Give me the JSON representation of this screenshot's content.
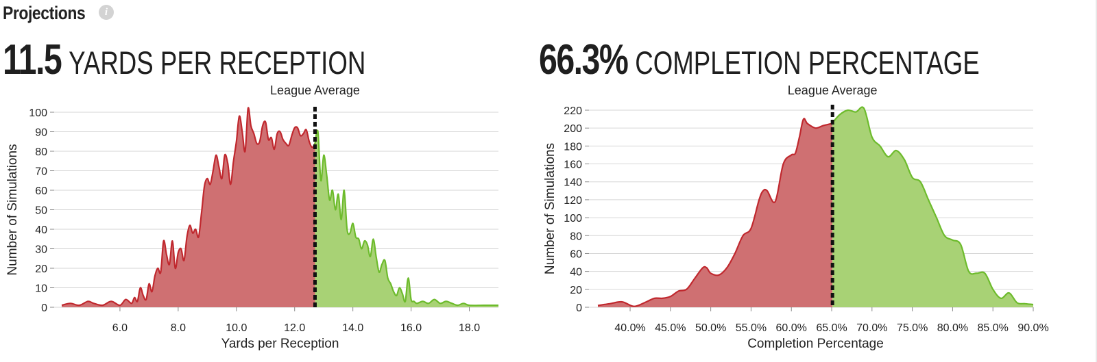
{
  "header": {
    "title": "Projections",
    "info_icon": "info-icon"
  },
  "stats": [
    {
      "value": "11.5",
      "label": "YARDS PER RECEPTION"
    },
    {
      "value": "66.3%",
      "label": "COMPLETION PERCENTAGE"
    }
  ],
  "colors": {
    "below": "#c0282e",
    "below_fill": "#cf7072",
    "above": "#6dbb2c",
    "above_fill": "#a8d275",
    "grid": "#d6d6d6",
    "marker": "#111111"
  },
  "chart_data": [
    {
      "type": "area",
      "annotation": "League Average",
      "league_average": 12.7,
      "xlabel": "Yards per Reception",
      "ylabel": "Number of Simulations",
      "xlim": [
        4.0,
        19.0
      ],
      "ylim": [
        0,
        100
      ],
      "x_ticks": [
        6.0,
        8.0,
        10.0,
        12.0,
        14.0,
        16.0,
        18.0
      ],
      "x_tick_labels": [
        "6.0",
        "8.0",
        "10.0",
        "12.0",
        "14.0",
        "16.0",
        "18.0"
      ],
      "y_ticks": [
        0,
        10,
        20,
        30,
        40,
        50,
        60,
        70,
        80,
        90,
        100
      ],
      "y_tick_labels": [
        "0",
        "10",
        "20",
        "30",
        "40",
        "50",
        "60",
        "70",
        "80",
        "90",
        "100"
      ],
      "grid": true,
      "x": [
        4.0,
        4.3,
        4.6,
        4.9,
        5.1,
        5.4,
        5.7,
        6.0,
        6.2,
        6.4,
        6.5,
        6.6,
        6.7,
        6.8,
        6.9,
        7.0,
        7.1,
        7.2,
        7.3,
        7.4,
        7.5,
        7.6,
        7.7,
        7.8,
        7.9,
        8.0,
        8.1,
        8.2,
        8.3,
        8.4,
        8.5,
        8.6,
        8.7,
        8.8,
        8.9,
        9.0,
        9.1,
        9.2,
        9.3,
        9.4,
        9.5,
        9.6,
        9.7,
        9.8,
        9.9,
        10.0,
        10.1,
        10.2,
        10.3,
        10.4,
        10.5,
        10.6,
        10.7,
        10.8,
        10.9,
        11.0,
        11.1,
        11.2,
        11.3,
        11.4,
        11.5,
        11.6,
        11.7,
        11.8,
        11.9,
        12.0,
        12.1,
        12.2,
        12.3,
        12.4,
        12.5,
        12.6,
        12.7,
        12.8,
        12.9,
        13.0,
        13.1,
        13.2,
        13.3,
        13.4,
        13.5,
        13.6,
        13.7,
        13.8,
        13.9,
        14.0,
        14.1,
        14.2,
        14.3,
        14.4,
        14.5,
        14.6,
        14.7,
        14.8,
        14.9,
        15.0,
        15.1,
        15.2,
        15.3,
        15.4,
        15.5,
        15.6,
        15.7,
        15.8,
        15.9,
        16.0,
        16.1,
        16.2,
        16.4,
        16.6,
        16.8,
        17.0,
        17.2,
        17.4,
        17.6,
        17.8,
        18.0,
        18.5,
        19.0
      ],
      "y": [
        1,
        2,
        1,
        3,
        2,
        1,
        3,
        1,
        4,
        2,
        5,
        3,
        10,
        6,
        4,
        12,
        8,
        16,
        20,
        18,
        34,
        27,
        22,
        34,
        20,
        28,
        30,
        24,
        36,
        42,
        38,
        40,
        36,
        48,
        62,
        66,
        63,
        70,
        78,
        72,
        66,
        78,
        74,
        63,
        75,
        85,
        98,
        90,
        80,
        102,
        93,
        89,
        84,
        85,
        93,
        95,
        86,
        87,
        81,
        89,
        90,
        86,
        84,
        83,
        88,
        92,
        92,
        88,
        89,
        91,
        85,
        82,
        84,
        90,
        65,
        78,
        68,
        55,
        60,
        50,
        58,
        45,
        60,
        40,
        38,
        43,
        36,
        35,
        30,
        34,
        32,
        26,
        35,
        26,
        18,
        22,
        24,
        15,
        12,
        8,
        6,
        10,
        7,
        3,
        15,
        4,
        3,
        2,
        3,
        2,
        4,
        2,
        3,
        2,
        1,
        2,
        1,
        1,
        1
      ]
    },
    {
      "type": "area",
      "annotation": "League Average",
      "league_average": 65.1,
      "xlabel": "Completion Percentage",
      "ylabel": "Number of Simulations",
      "xlim": [
        36.0,
        90.0
      ],
      "ylim": [
        0,
        220
      ],
      "x_ticks": [
        40,
        45,
        50,
        55,
        60,
        65,
        70,
        75,
        80,
        85,
        90
      ],
      "x_tick_labels": [
        "40.0%",
        "45.0%",
        "50.0%",
        "55.0%",
        "60.0%",
        "65.0%",
        "70.0%",
        "75.0%",
        "80.0%",
        "85.0%",
        "90.0%"
      ],
      "y_ticks": [
        0,
        20,
        40,
        60,
        80,
        100,
        120,
        140,
        160,
        180,
        200,
        220
      ],
      "y_tick_labels": [
        "0",
        "20",
        "40",
        "60",
        "80",
        "100",
        "120",
        "140",
        "160",
        "180",
        "200",
        "220"
      ],
      "grid": true,
      "x": [
        36.0,
        37.5,
        39.0,
        40.5,
        42.0,
        43.0,
        44.0,
        45.0,
        46.0,
        47.0,
        48.0,
        49.0,
        49.5,
        50.0,
        51.0,
        52.0,
        53.0,
        54.0,
        55.0,
        56.0,
        56.5,
        57.0,
        58.0,
        59.0,
        60.0,
        60.5,
        61.0,
        61.5,
        62.0,
        63.0,
        64.0,
        65.0,
        66.0,
        67.0,
        68.0,
        69.0,
        70.0,
        71.0,
        72.0,
        73.0,
        74.0,
        75.0,
        76.0,
        77.0,
        78.0,
        79.0,
        80.0,
        81.0,
        82.0,
        83.0,
        84.0,
        85.0,
        86.0,
        87.0,
        88.0,
        89.0,
        90.0
      ],
      "y": [
        2,
        4,
        6,
        1,
        6,
        10,
        10,
        12,
        18,
        20,
        32,
        44,
        44,
        38,
        36,
        44,
        60,
        80,
        88,
        120,
        130,
        130,
        118,
        160,
        170,
        172,
        190,
        210,
        205,
        200,
        203,
        205,
        215,
        220,
        218,
        222,
        190,
        180,
        168,
        175,
        165,
        145,
        140,
        120,
        100,
        80,
        75,
        70,
        40,
        38,
        38,
        20,
        10,
        16,
        5,
        4,
        3
      ]
    }
  ]
}
